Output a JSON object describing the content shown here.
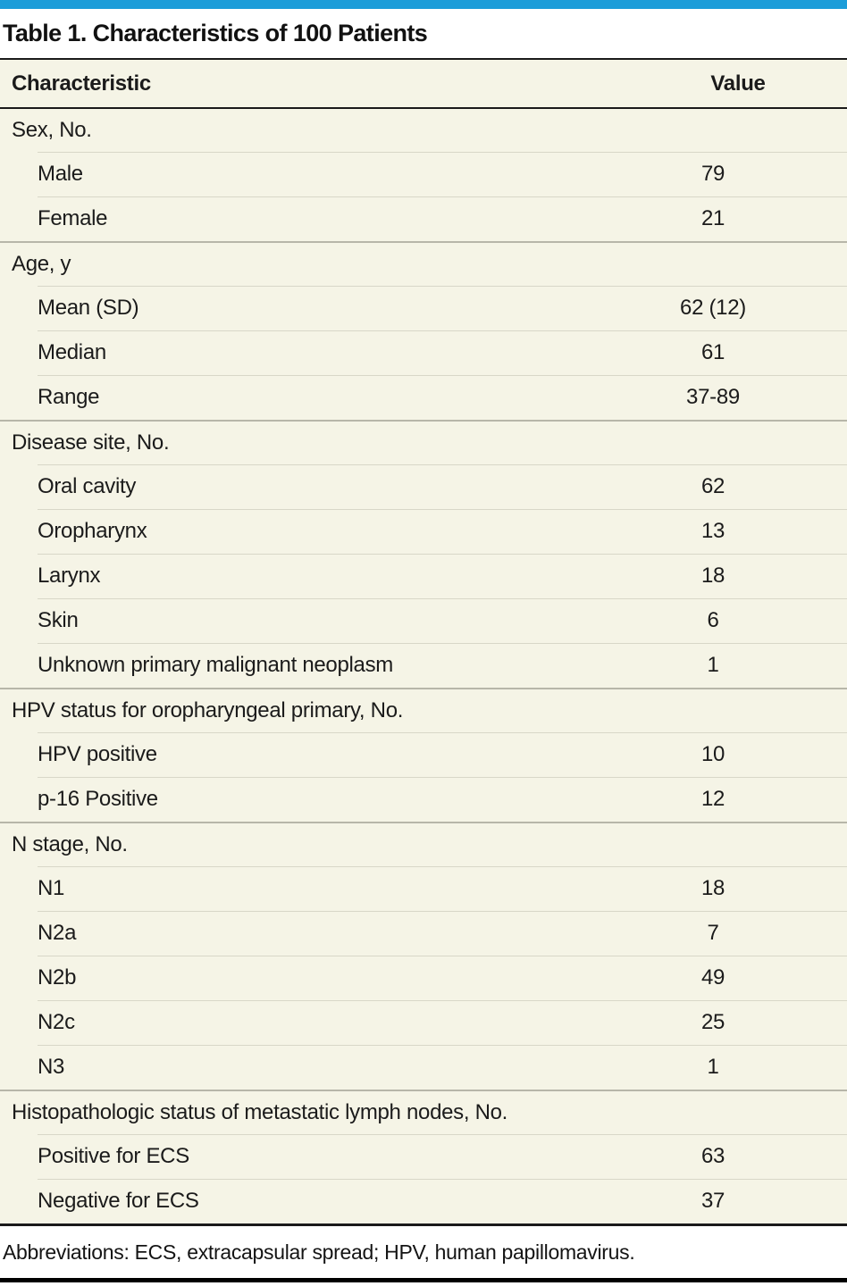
{
  "colors": {
    "accent_bar": "#1c9dd9",
    "table_background": "#f5f4e6",
    "rule_dark": "#1a1a1a",
    "rule_section": "#b7b6a9",
    "rule_row": "#d8d7c8"
  },
  "table": {
    "title": "Table 1. Characteristics of 100 Patients",
    "columns": [
      "Characteristic",
      "Value"
    ],
    "sections": [
      {
        "header": "Sex, No.",
        "rows": [
          {
            "label": "Male",
            "value": "79"
          },
          {
            "label": "Female",
            "value": "21"
          }
        ]
      },
      {
        "header": "Age, y",
        "rows": [
          {
            "label": "Mean (SD)",
            "value": "62 (12)"
          },
          {
            "label": "Median",
            "value": "61"
          },
          {
            "label": "Range",
            "value": "37-89"
          }
        ]
      },
      {
        "header": "Disease site, No.",
        "rows": [
          {
            "label": "Oral cavity",
            "value": "62"
          },
          {
            "label": "Oropharynx",
            "value": "13"
          },
          {
            "label": "Larynx",
            "value": "18"
          },
          {
            "label": "Skin",
            "value": "6"
          },
          {
            "label": "Unknown primary malignant neoplasm",
            "value": "1"
          }
        ]
      },
      {
        "header": "HPV status for oropharyngeal primary, No.",
        "rows": [
          {
            "label": "HPV positive",
            "value": "10"
          },
          {
            "label": "p-16 Positive",
            "value": "12"
          }
        ]
      },
      {
        "header": "N stage, No.",
        "rows": [
          {
            "label": "N1",
            "value": "18"
          },
          {
            "label": "N2a",
            "value": "7"
          },
          {
            "label": "N2b",
            "value": "49"
          },
          {
            "label": "N2c",
            "value": "25"
          },
          {
            "label": "N3",
            "value": "1"
          }
        ]
      },
      {
        "header": "Histopathologic status of metastatic lymph nodes, No.",
        "rows": [
          {
            "label": "Positive for ECS",
            "value": "63"
          },
          {
            "label": "Negative for ECS",
            "value": "37"
          }
        ]
      }
    ],
    "footnote": "Abbreviations: ECS, extracapsular spread; HPV, human papillomavirus."
  }
}
